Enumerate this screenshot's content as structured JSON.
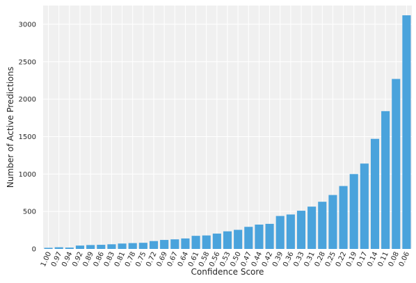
{
  "chart_data": {
    "type": "bar",
    "title": "",
    "xlabel": "Confidence Score",
    "ylabel": "Number of Active Predictions",
    "categories": [
      "1.00",
      "0.97",
      "0.94",
      "0.92",
      "0.89",
      "0.86",
      "0.83",
      "0.81",
      "0.78",
      "0.75",
      "0.72",
      "0.69",
      "0.67",
      "0.64",
      "0.61",
      "0.58",
      "0.56",
      "0.53",
      "0.50",
      "0.47",
      "0.44",
      "0.42",
      "0.39",
      "0.36",
      "0.33",
      "0.31",
      "0.28",
      "0.25",
      "0.22",
      "0.19",
      "0.17",
      "0.14",
      "0.11",
      "0.08",
      "0.06"
    ],
    "values": [
      15,
      22,
      18,
      45,
      52,
      55,
      62,
      72,
      78,
      82,
      105,
      120,
      128,
      140,
      175,
      180,
      205,
      235,
      255,
      295,
      325,
      335,
      440,
      460,
      510,
      565,
      630,
      720,
      840,
      1000,
      1140,
      1470,
      1840,
      2270,
      3120
    ],
    "ylim": [
      0,
      3250
    ],
    "yticks": [
      0,
      500,
      1000,
      1500,
      2000,
      2500,
      3000
    ],
    "grid": true,
    "bar_color": "#4aa3dc",
    "background_color": "#f0f0f0"
  }
}
